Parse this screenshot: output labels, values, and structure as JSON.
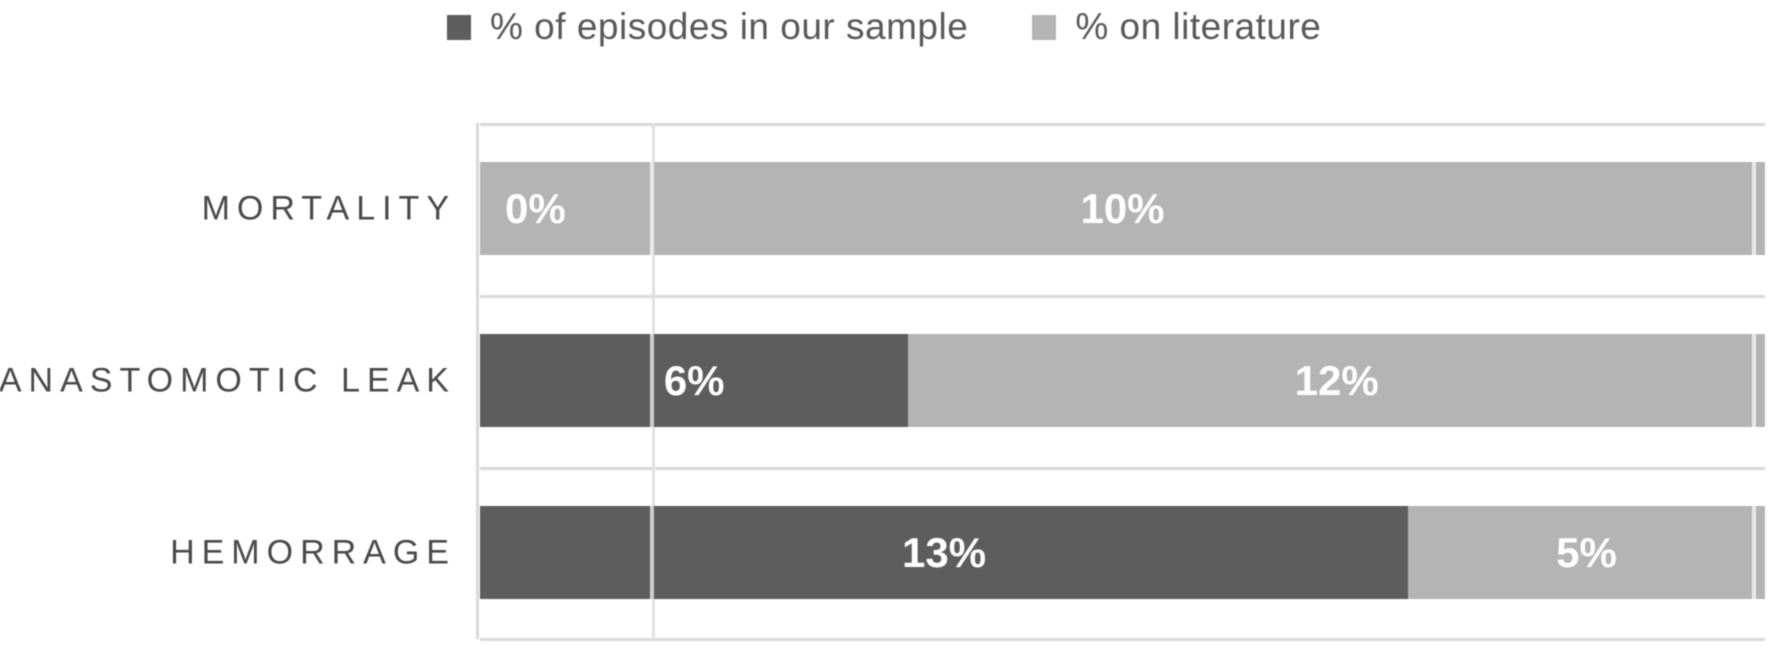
{
  "legend": {
    "items": [
      {
        "label": "% of episodes in our sample",
        "color": "#5d5d5d"
      },
      {
        "label": "% on literature",
        "color": "#b4b4b4"
      }
    ]
  },
  "chart_data": {
    "type": "bar",
    "orientation": "horizontal",
    "stacking": "percent",
    "title": "",
    "xlabel": "",
    "ylabel": "",
    "legend_position": "top",
    "grid": "minimal",
    "categories": [
      "MORTALITY",
      "ANASTOMOTIC LEAK",
      "HEMORRAGE"
    ],
    "series": [
      {
        "name": "% of episodes in our sample",
        "color": "#5d5d5d",
        "values": [
          0,
          6,
          13
        ],
        "data_labels": [
          "0%",
          "6%",
          "13%"
        ]
      },
      {
        "name": "% on literature",
        "color": "#b4b4b4",
        "values": [
          10,
          12,
          5
        ],
        "data_labels": [
          "10%",
          "12%",
          "5%"
        ]
      }
    ],
    "data_label_color": "#ffffff",
    "colors": {
      "gridline": "#d9d9d9",
      "category_label": "#4a4a4a",
      "legend_text": "#595959",
      "background": "#ffffff"
    }
  }
}
